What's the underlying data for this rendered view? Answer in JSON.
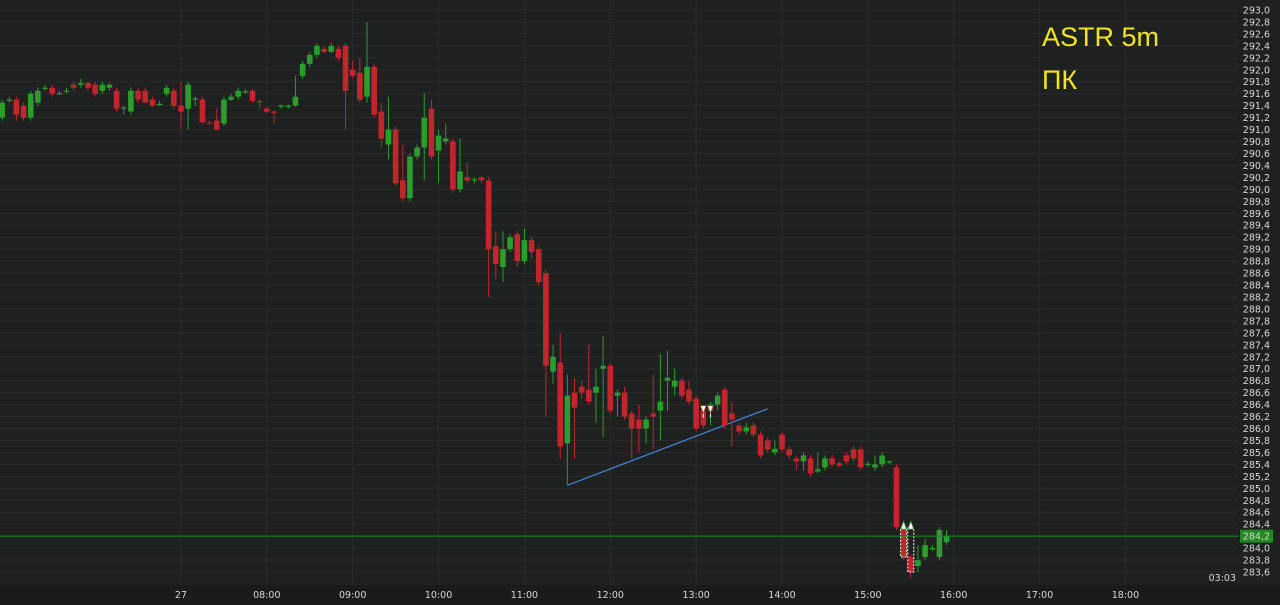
{
  "overlay": {
    "line1": "ASTR 5m",
    "line2": "ПК"
  },
  "timer": "03:03",
  "colors": {
    "background": "#1f2020",
    "up": "#2c9c2c",
    "down": "#c2262d",
    "trendline": "#3b82d6",
    "title": "#f2e51c",
    "last_price": "#1f8a1f"
  },
  "chart_data": {
    "type": "candlestick",
    "title": "ASTR 5m",
    "subtitle": "ПК",
    "ylim": [
      283.6,
      293.0
    ],
    "y_ticks_step": 0.2,
    "y_decimal_separator": ",",
    "grid": true,
    "last_price": 284.2,
    "x_ticks": [
      {
        "index": 25,
        "label": "27"
      },
      {
        "index": 37,
        "label": "08:00"
      },
      {
        "index": 49,
        "label": "09:00"
      },
      {
        "index": 61,
        "label": "10:00"
      },
      {
        "index": 73,
        "label": "11:00"
      },
      {
        "index": 85,
        "label": "12:00"
      },
      {
        "index": 97,
        "label": "13:00"
      },
      {
        "index": 109,
        "label": "14:00"
      },
      {
        "index": 121,
        "label": "15:00"
      },
      {
        "index": 133,
        "label": "16:00"
      },
      {
        "index": 145,
        "label": "17:00"
      },
      {
        "index": 157,
        "label": "18:00"
      }
    ],
    "ohlc_fields": [
      "open",
      "high",
      "low",
      "close"
    ],
    "candles": [
      [
        291.2,
        291.5,
        291.15,
        291.45
      ],
      [
        291.5,
        291.55,
        291.45,
        291.5
      ],
      [
        291.5,
        291.55,
        291.15,
        291.25
      ],
      [
        291.4,
        291.45,
        291.15,
        291.2
      ],
      [
        291.2,
        291.65,
        291.15,
        291.6
      ],
      [
        291.45,
        291.7,
        291.4,
        291.65
      ],
      [
        291.7,
        291.75,
        291.65,
        291.7
      ],
      [
        291.7,
        291.75,
        291.55,
        291.6
      ],
      [
        291.6,
        291.65,
        291.58,
        291.61
      ],
      [
        291.65,
        291.7,
        291.6,
        291.65
      ],
      [
        291.75,
        291.8,
        291.65,
        291.7
      ],
      [
        291.75,
        291.85,
        291.7,
        291.78
      ],
      [
        291.78,
        291.8,
        291.65,
        291.7
      ],
      [
        291.75,
        291.8,
        291.55,
        291.6
      ],
      [
        291.65,
        291.8,
        291.6,
        291.75
      ],
      [
        291.7,
        291.78,
        291.65,
        291.75
      ],
      [
        291.65,
        291.7,
        291.3,
        291.35
      ],
      [
        291.35,
        291.4,
        291.25,
        291.37
      ],
      [
        291.3,
        291.7,
        291.25,
        291.65
      ],
      [
        291.65,
        291.7,
        291.45,
        291.5
      ],
      [
        291.65,
        291.7,
        291.45,
        291.45
      ],
      [
        291.5,
        291.55,
        291.38,
        291.4
      ],
      [
        291.42,
        291.48,
        291.4,
        291.43
      ],
      [
        291.6,
        291.75,
        291.55,
        291.7
      ],
      [
        291.65,
        291.7,
        291.35,
        291.4
      ],
      [
        291.4,
        291.8,
        291.0,
        291.3
      ],
      [
        291.35,
        291.8,
        291.0,
        291.75
      ],
      [
        291.5,
        291.55,
        291.4,
        291.52
      ],
      [
        291.5,
        291.55,
        291.1,
        291.12
      ],
      [
        291.12,
        291.15,
        291.08,
        291.1
      ],
      [
        291.15,
        291.35,
        290.98,
        291.0
      ],
      [
        291.1,
        291.55,
        291.05,
        291.5
      ],
      [
        291.5,
        291.6,
        291.48,
        291.55
      ],
      [
        291.55,
        291.7,
        291.5,
        291.65
      ],
      [
        291.62,
        291.68,
        291.6,
        291.64
      ],
      [
        291.65,
        291.68,
        291.45,
        291.48
      ],
      [
        291.48,
        291.5,
        291.35,
        291.46
      ],
      [
        291.35,
        291.38,
        291.28,
        291.3
      ],
      [
        291.3,
        291.32,
        291.1,
        291.28
      ],
      [
        291.38,
        291.42,
        291.35,
        291.4
      ],
      [
        291.38,
        291.42,
        291.35,
        291.4
      ],
      [
        291.4,
        291.9,
        291.38,
        291.55
      ],
      [
        291.9,
        292.15,
        291.85,
        292.1
      ],
      [
        292.1,
        292.3,
        292.05,
        292.25
      ],
      [
        292.25,
        292.45,
        292.2,
        292.4
      ],
      [
        292.35,
        292.4,
        292.28,
        292.3
      ],
      [
        292.3,
        292.45,
        292.28,
        292.4
      ],
      [
        292.35,
        292.4,
        292.15,
        292.2
      ],
      [
        292.4,
        292.45,
        291.0,
        291.65
      ],
      [
        292.0,
        292.15,
        291.85,
        291.9
      ],
      [
        291.95,
        292.2,
        291.45,
        291.5
      ],
      [
        291.55,
        292.8,
        291.45,
        292.05
      ],
      [
        292.05,
        292.1,
        291.2,
        291.25
      ],
      [
        291.3,
        291.45,
        290.7,
        290.85
      ],
      [
        290.75,
        291.55,
        290.5,
        291.0
      ],
      [
        291.0,
        291.05,
        290.05,
        290.1
      ],
      [
        290.15,
        290.75,
        289.8,
        289.85
      ],
      [
        289.85,
        290.6,
        289.8,
        290.55
      ],
      [
        290.55,
        290.75,
        290.5,
        290.7
      ],
      [
        290.7,
        291.6,
        290.15,
        291.2
      ],
      [
        291.35,
        291.5,
        290.5,
        290.55
      ],
      [
        290.65,
        291.0,
        290.1,
        290.9
      ],
      [
        290.8,
        291.1,
        290.75,
        290.85
      ],
      [
        290.8,
        290.85,
        289.95,
        290.0
      ],
      [
        290.0,
        290.85,
        289.95,
        290.3
      ],
      [
        290.2,
        290.45,
        290.1,
        290.15
      ],
      [
        290.15,
        290.2,
        290.1,
        290.17
      ],
      [
        290.2,
        290.22,
        290.1,
        290.15
      ],
      [
        290.15,
        290.2,
        288.2,
        289.0
      ],
      [
        289.05,
        289.3,
        288.5,
        288.75
      ],
      [
        288.7,
        289.3,
        288.45,
        289.0
      ],
      [
        289.0,
        289.25,
        288.95,
        289.2
      ],
      [
        289.25,
        289.3,
        288.7,
        288.8
      ],
      [
        288.8,
        289.35,
        288.75,
        289.15
      ],
      [
        289.15,
        289.2,
        288.85,
        288.95
      ],
      [
        289.0,
        289.05,
        288.4,
        288.45
      ],
      [
        288.6,
        288.65,
        286.2,
        287.05
      ],
      [
        286.95,
        287.4,
        286.75,
        287.2
      ],
      [
        287.1,
        287.6,
        285.5,
        285.7
      ],
      [
        285.75,
        286.9,
        285.05,
        286.55
      ],
      [
        286.6,
        286.85,
        285.5,
        286.35
      ],
      [
        286.7,
        286.8,
        286.5,
        286.6
      ],
      [
        286.65,
        287.4,
        286.4,
        286.45
      ],
      [
        286.6,
        287.0,
        286.1,
        286.7
      ],
      [
        287.0,
        287.55,
        285.85,
        287.05
      ],
      [
        287.05,
        287.1,
        286.25,
        286.3
      ],
      [
        286.55,
        286.65,
        286.2,
        286.6
      ],
      [
        286.6,
        286.7,
        286.15,
        286.2
      ],
      [
        286.25,
        286.3,
        285.5,
        286.0
      ],
      [
        286.15,
        286.4,
        285.6,
        286.0
      ],
      [
        286.0,
        286.2,
        285.75,
        286.15
      ],
      [
        286.25,
        286.9,
        285.65,
        286.2
      ],
      [
        286.3,
        287.25,
        285.8,
        286.45
      ],
      [
        286.8,
        287.3,
        286.3,
        286.85
      ],
      [
        286.7,
        287.0,
        286.55,
        286.8
      ],
      [
        286.8,
        286.85,
        286.5,
        286.55
      ],
      [
        286.65,
        286.8,
        286.4,
        286.45
      ],
      [
        286.5,
        286.55,
        285.95,
        286.0
      ],
      [
        286.3,
        286.4,
        286.0,
        286.05
      ],
      [
        286.3,
        286.45,
        286.05,
        286.4
      ],
      [
        286.4,
        286.6,
        286.3,
        286.55
      ],
      [
        286.65,
        286.7,
        286.0,
        286.05
      ],
      [
        286.25,
        286.45,
        285.7,
        286.15
      ],
      [
        286.05,
        286.1,
        285.9,
        285.95
      ],
      [
        285.95,
        286.1,
        285.9,
        286.02
      ],
      [
        286.05,
        286.1,
        285.85,
        285.9
      ],
      [
        285.9,
        285.95,
        285.5,
        285.55
      ],
      [
        285.8,
        285.85,
        285.6,
        285.65
      ],
      [
        285.6,
        285.8,
        285.55,
        285.66
      ],
      [
        285.9,
        285.95,
        285.6,
        285.65
      ],
      [
        285.65,
        285.7,
        285.5,
        285.55
      ],
      [
        285.5,
        285.55,
        285.3,
        285.45
      ],
      [
        285.45,
        285.6,
        285.3,
        285.55
      ],
      [
        285.5,
        285.55,
        285.2,
        285.25
      ],
      [
        285.28,
        285.6,
        285.25,
        285.32
      ],
      [
        285.35,
        285.55,
        285.3,
        285.5
      ],
      [
        285.5,
        285.55,
        285.35,
        285.4
      ],
      [
        285.42,
        285.45,
        285.35,
        285.38
      ],
      [
        285.55,
        285.6,
        285.4,
        285.45
      ],
      [
        285.65,
        285.7,
        285.45,
        285.5
      ],
      [
        285.65,
        285.7,
        285.3,
        285.35
      ],
      [
        285.4,
        285.45,
        285.35,
        285.41
      ],
      [
        285.35,
        285.55,
        285.3,
        285.4
      ],
      [
        285.4,
        285.6,
        285.35,
        285.55
      ],
      [
        285.43,
        285.47,
        285.4,
        285.45
      ],
      [
        285.35,
        285.4,
        284.3,
        284.35
      ],
      [
        284.35,
        284.4,
        283.8,
        283.85
      ],
      [
        283.85,
        283.9,
        283.5,
        283.6
      ],
      [
        283.7,
        284.05,
        283.6,
        283.8
      ],
      [
        283.85,
        284.15,
        283.8,
        284.05
      ],
      [
        284.0,
        284.05,
        283.95,
        284.0
      ],
      [
        283.85,
        284.35,
        283.8,
        284.3
      ],
      [
        284.1,
        284.3,
        284.05,
        284.2
      ]
    ],
    "trendline": {
      "from": {
        "index": 79,
        "price": 285.05
      },
      "to": {
        "index": 107,
        "price": 286.33
      }
    },
    "trade_markers": [
      {
        "index": 98,
        "price": 286.3,
        "side": "sell"
      },
      {
        "index": 99,
        "price": 286.3,
        "side": "sell"
      },
      {
        "index": 126,
        "price": 284.4,
        "side": "buy",
        "trail_to": 283.85
      },
      {
        "index": 127,
        "price": 284.4,
        "side": "buy",
        "trail_to": 283.6
      }
    ]
  }
}
